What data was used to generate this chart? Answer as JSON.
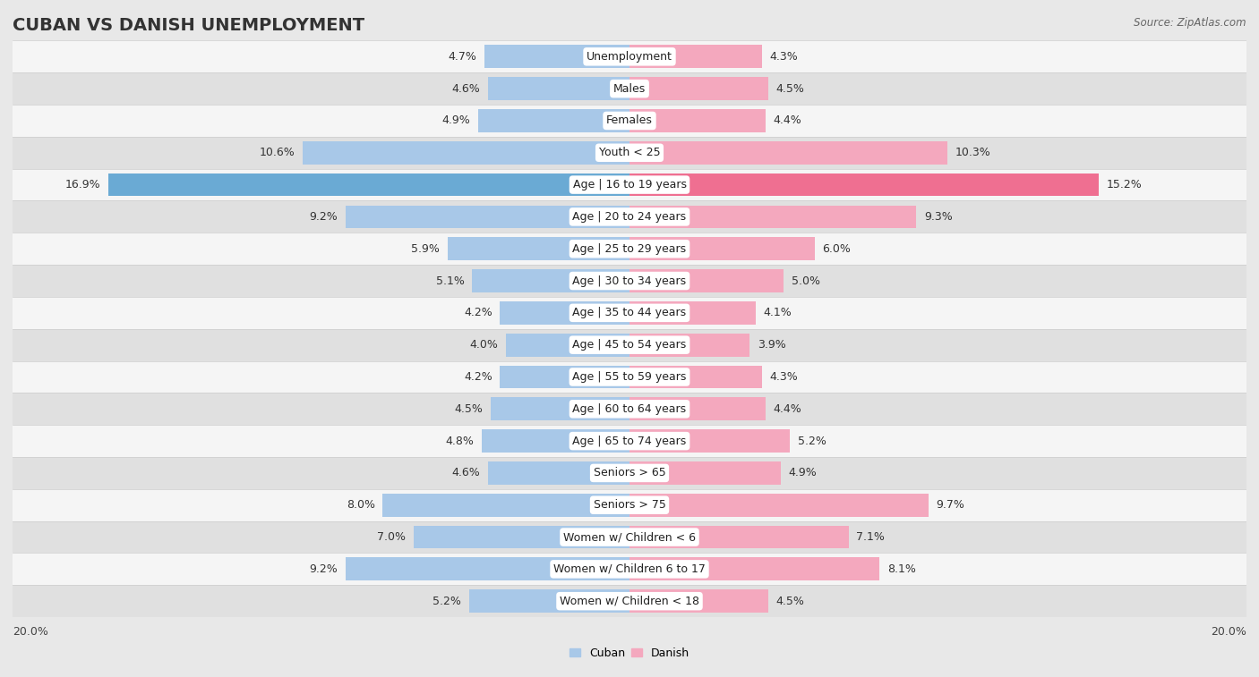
{
  "title": "CUBAN VS DANISH UNEMPLOYMENT",
  "source": "Source: ZipAtlas.com",
  "categories": [
    "Unemployment",
    "Males",
    "Females",
    "Youth < 25",
    "Age | 16 to 19 years",
    "Age | 20 to 24 years",
    "Age | 25 to 29 years",
    "Age | 30 to 34 years",
    "Age | 35 to 44 years",
    "Age | 45 to 54 years",
    "Age | 55 to 59 years",
    "Age | 60 to 64 years",
    "Age | 65 to 74 years",
    "Seniors > 65",
    "Seniors > 75",
    "Women w/ Children < 6",
    "Women w/ Children 6 to 17",
    "Women w/ Children < 18"
  ],
  "cuban": [
    4.7,
    4.6,
    4.9,
    10.6,
    16.9,
    9.2,
    5.9,
    5.1,
    4.2,
    4.0,
    4.2,
    4.5,
    4.8,
    4.6,
    8.0,
    7.0,
    9.2,
    5.2
  ],
  "danish": [
    4.3,
    4.5,
    4.4,
    10.3,
    15.2,
    9.3,
    6.0,
    5.0,
    4.1,
    3.9,
    4.3,
    4.4,
    5.2,
    4.9,
    9.7,
    7.1,
    8.1,
    4.5
  ],
  "cuban_color": "#A8C8E8",
  "danish_color": "#F4A8BE",
  "cuban_highlight": "#6aaad4",
  "danish_highlight": "#ef6f91",
  "bg_outer": "#e8e8e8",
  "row_light": "#f5f5f5",
  "row_dark": "#e0e0e0",
  "max_val": 20.0,
  "bar_height": 0.72,
  "legend_cuban": "Cuban",
  "legend_danish": "Danish",
  "title_fontsize": 14,
  "label_fontsize": 9,
  "value_fontsize": 9,
  "source_fontsize": 8.5
}
